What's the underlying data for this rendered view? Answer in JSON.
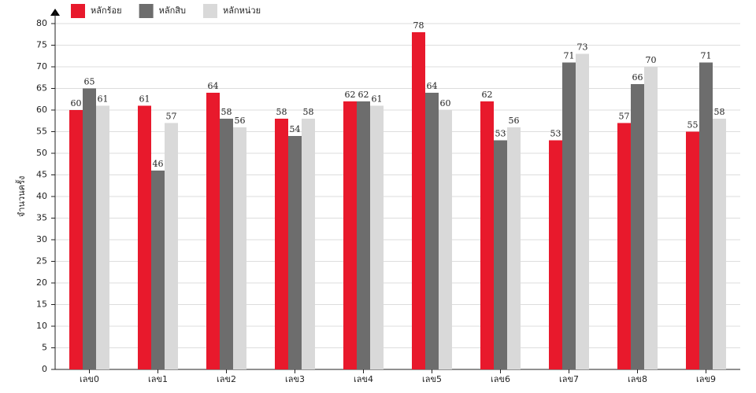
{
  "chart_data": {
    "type": "bar",
    "y_label": "จำนวนครั้ง",
    "categories": [
      "เลข0",
      "เลข1",
      "เลข2",
      "เลข3",
      "เลข4",
      "เลข5",
      "เลข6",
      "เลข7",
      "เลข8",
      "เลข9"
    ],
    "series": [
      {
        "name": "หลักร้อย",
        "color": "#e8192c",
        "values": [
          60,
          61,
          64,
          58,
          62,
          78,
          62,
          53,
          57,
          55
        ]
      },
      {
        "name": "หลักสิบ",
        "color": "#6d6d6d",
        "values": [
          65,
          46,
          58,
          54,
          62,
          64,
          53,
          71,
          66,
          71
        ]
      },
      {
        "name": "หลักหน่วย",
        "color": "#d9d9d9",
        "values": [
          61,
          57,
          56,
          58,
          61,
          60,
          56,
          73,
          70,
          58
        ]
      }
    ],
    "ylim": [
      0,
      80
    ],
    "yticks": [
      0,
      5,
      10,
      15,
      20,
      25,
      30,
      35,
      40,
      45,
      50,
      55,
      60,
      65,
      70,
      75,
      80
    ],
    "grid": true,
    "legend": "top-left"
  }
}
